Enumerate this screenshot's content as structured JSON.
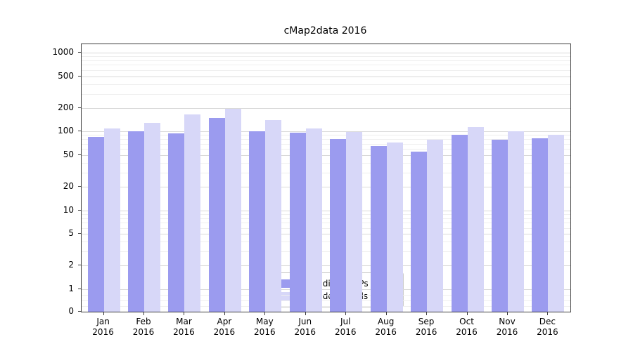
{
  "chart_data": {
    "type": "bar",
    "title": "cMap2data 2016",
    "x": [
      "Jan",
      "Feb",
      "Mar",
      "Apr",
      "May",
      "Jun",
      "Jul",
      "Aug",
      "Sep",
      "Oct",
      "Nov",
      "Dec"
    ],
    "x_year": "2016",
    "series": [
      {
        "name": "Nb of distinct IPs",
        "color": "#9b9bef",
        "values": [
          85,
          100,
          95,
          150,
          100,
          97,
          80,
          65,
          55,
          90,
          78,
          82
        ]
      },
      {
        "name": "Nb of downloads",
        "color": "#d7d7f8",
        "values": [
          110,
          130,
          165,
          195,
          140,
          110,
          98,
          72,
          78,
          115,
          100,
          90
        ]
      }
    ],
    "yscale": "symlog",
    "y_ticks": [
      0,
      1,
      2,
      5,
      10,
      20,
      50,
      100,
      200,
      500,
      1000
    ],
    "y_minor_ticks": [
      0.25,
      0.5,
      0.75,
      3,
      4,
      6,
      7,
      8,
      9,
      30,
      40,
      60,
      70,
      80,
      90,
      300,
      400,
      600,
      700,
      800,
      900
    ],
    "ylim": [
      0,
      1400
    ],
    "grid": true,
    "legend_position": "lower center"
  }
}
